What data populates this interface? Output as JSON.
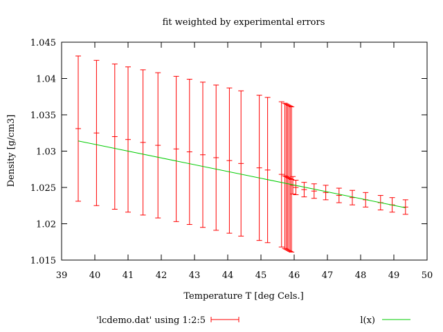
{
  "chart_data": {
    "type": "scatter",
    "title": "fit weighted by experimental errors",
    "xlabel": "Temperature T  [deg Cels.]",
    "ylabel": "Density [g/cm3]",
    "xlim": [
      39,
      50
    ],
    "ylim": [
      1.015,
      1.045
    ],
    "xticks": [
      39,
      40,
      41,
      42,
      43,
      44,
      45,
      46,
      47,
      48,
      49,
      50
    ],
    "xtick_labels": [
      "39",
      "40",
      "41",
      "42",
      "43",
      "44",
      "45",
      "46",
      "47",
      "48",
      "49",
      "50"
    ],
    "yticks": [
      1.015,
      1.02,
      1.025,
      1.03,
      1.035,
      1.04,
      1.045
    ],
    "ytick_labels": [
      "1.015",
      "1.02",
      "1.025",
      "1.03",
      "1.035",
      "1.04",
      "1.045"
    ],
    "grid": false,
    "legend_position": "bottom",
    "series": [
      {
        "name": "'lcdemo.dat' using 1:2:5",
        "kind": "errorbars",
        "color": "#ff0000",
        "x": [
          39.5,
          40.05,
          40.6,
          41.0,
          41.45,
          41.9,
          42.45,
          42.85,
          43.25,
          43.65,
          44.05,
          44.4,
          44.95,
          45.2,
          45.62,
          45.72,
          45.76,
          45.8,
          45.84,
          45.88,
          45.92,
          45.96,
          46.05,
          46.3,
          46.6,
          46.95,
          47.35,
          47.75,
          48.15,
          48.6,
          48.95,
          49.35
        ],
        "y": [
          1.0331,
          1.0325,
          1.032,
          1.0316,
          1.0312,
          1.0308,
          1.0303,
          1.0299,
          1.0295,
          1.0291,
          1.0287,
          1.0283,
          1.0277,
          1.0274,
          1.0268,
          1.0266,
          1.0265,
          1.0264,
          1.0263,
          1.0262,
          1.0261,
          1.0253,
          1.025,
          1.0247,
          1.0245,
          1.0243,
          1.0239,
          1.0236,
          1.0233,
          1.0229,
          1.0226,
          1.0223
        ],
        "yerr": [
          0.01,
          0.01,
          0.01,
          0.01,
          0.01,
          0.01,
          0.01,
          0.01,
          0.01,
          0.01,
          0.01,
          0.01,
          0.01,
          0.01,
          0.01,
          0.01,
          0.01,
          0.01,
          0.01,
          0.01,
          0.01,
          0.0012,
          0.001,
          0.001,
          0.001,
          0.001,
          0.001,
          0.001,
          0.001,
          0.001,
          0.001,
          0.001
        ]
      },
      {
        "name": "l(x)",
        "kind": "line",
        "color": "#00cc00",
        "x": [
          39.5,
          49.35
        ],
        "y": [
          1.0314,
          1.0222
        ]
      }
    ]
  }
}
